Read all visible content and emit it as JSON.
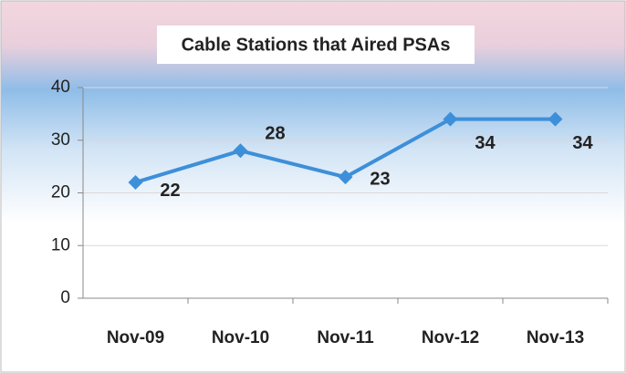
{
  "chart_data": {
    "type": "line",
    "title": "Cable Stations that Aired PSAs",
    "categories": [
      "Nov-09",
      "Nov-10",
      "Nov-11",
      "Nov-12",
      "Nov-13"
    ],
    "series": [
      {
        "name": "Cable Stations",
        "color": "#3d8fd9",
        "values": [
          22,
          28,
          23,
          34,
          34
        ]
      }
    ],
    "ylim": [
      0,
      40
    ],
    "yticks": [
      0,
      10,
      20,
      30,
      40
    ],
    "grid": true
  }
}
